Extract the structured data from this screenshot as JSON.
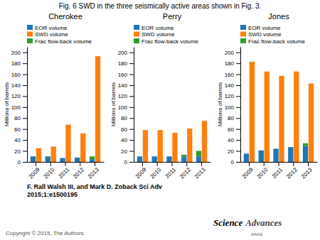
{
  "title": "Fig. 6 SWD in the three seismically active areas shown in Fig. 3.",
  "annotations": [
    "F. Rall Walsh III, and Mark D. Zoback Sci Adv\n2015;1:e1500195",
    "Copyright © 2015, The Authors",
    "Science",
    "Advances",
    "AAAS"
  ],
  "chart_data": [
    {
      "type": "bar",
      "title": "Cherokee",
      "categories": [
        "2009",
        "2010",
        "2011",
        "2012",
        "2013"
      ],
      "series": [
        {
          "name": "EOR volume",
          "values": [
            10,
            10,
            7,
            8,
            5
          ]
        },
        {
          "name": "SWD volume",
          "values": [
            25,
            28,
            68,
            52,
            193
          ]
        },
        {
          "name": "Frac flow-back volume",
          "values": [
            0,
            0,
            0,
            0,
            5
          ],
          "stacked": true
        }
      ],
      "ylabel": "Millions of barrels",
      "ylim": [
        0,
        210
      ],
      "yticks": [
        0,
        20,
        40,
        60,
        80,
        100,
        120,
        140,
        160,
        180,
        200
      ],
      "legend": "top",
      "grid": false
    },
    {
      "type": "bar",
      "title": "Perry",
      "categories": [
        "2009",
        "2010",
        "2011",
        "2012",
        "2013"
      ],
      "series": [
        {
          "name": "EOR volume",
          "values": [
            10,
            10,
            10,
            10,
            10
          ]
        },
        {
          "name": "SWD volume",
          "values": [
            58,
            58,
            53,
            61,
            75
          ]
        },
        {
          "name": "Frac flow-back volume",
          "values": [
            0,
            0,
            0,
            3,
            10
          ],
          "stacked": true
        }
      ],
      "ylabel": "Millions of barrels",
      "ylim": [
        0,
        210
      ],
      "yticks": [
        0,
        20,
        40,
        60,
        80,
        100,
        120,
        140,
        160,
        180,
        200
      ],
      "legend": "top",
      "grid": false
    },
    {
      "type": "bar",
      "title": "Jones",
      "categories": [
        "2009",
        "2010",
        "2011",
        "2012",
        "2013"
      ],
      "series": [
        {
          "name": "EOR volume",
          "values": [
            15,
            21,
            24,
            27,
            29
          ]
        },
        {
          "name": "SWD volume",
          "values": [
            183,
            165,
            157,
            165,
            143
          ]
        },
        {
          "name": "Frac flow-back volume",
          "values": [
            0,
            0,
            0,
            0,
            5
          ],
          "stacked": true
        }
      ],
      "ylabel": "Millions of barrels",
      "ylim": [
        0,
        210
      ],
      "yticks": [
        0,
        20,
        40,
        60,
        80,
        100,
        120,
        140,
        160,
        180,
        200
      ],
      "legend": "top",
      "grid": false
    }
  ]
}
